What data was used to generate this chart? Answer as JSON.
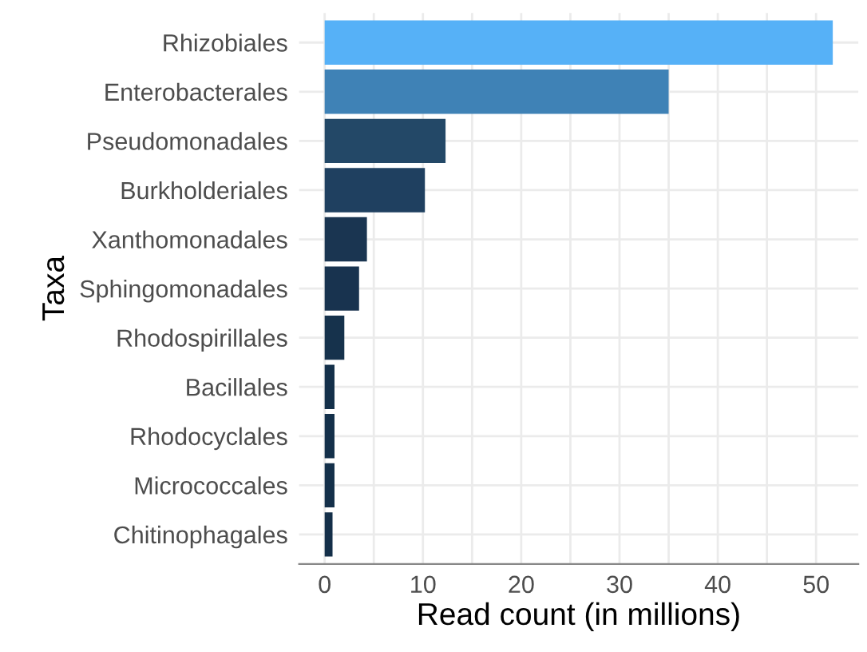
{
  "chart_data": {
    "type": "bar",
    "orientation": "horizontal",
    "xlabel": "Read count (in millions)",
    "ylabel": "Taxa",
    "categories": [
      "Rhizobiales",
      "Enterobacterales",
      "Pseudomonadales",
      "Burkholderiales",
      "Xanthomonadales",
      "Sphingomonadales",
      "Rhodospirillales",
      "Bacillales",
      "Rhodocyclales",
      "Micrococcales",
      "Chitinophagales"
    ],
    "values": [
      51.7,
      35.0,
      12.3,
      10.2,
      4.3,
      3.5,
      2.0,
      1.0,
      1.0,
      1.0,
      0.8
    ],
    "colors": [
      "#56b1f7",
      "#3f82b6",
      "#234867",
      "#1f4060",
      "#1a3551",
      "#18334f",
      "#16324c",
      "#14304a",
      "#14304a",
      "#14304a",
      "#142f49"
    ],
    "xlim": [
      -2.6,
      54.3
    ],
    "xticks": [
      0,
      {
        "value": 5,
        "label": null
      },
      10,
      {
        "value": 15,
        "label": null
      },
      20,
      {
        "value": 25,
        "label": null
      },
      30,
      {
        "value": 35,
        "label": null
      },
      40,
      {
        "value": 45,
        "label": null
      },
      50
    ],
    "grid": true
  }
}
